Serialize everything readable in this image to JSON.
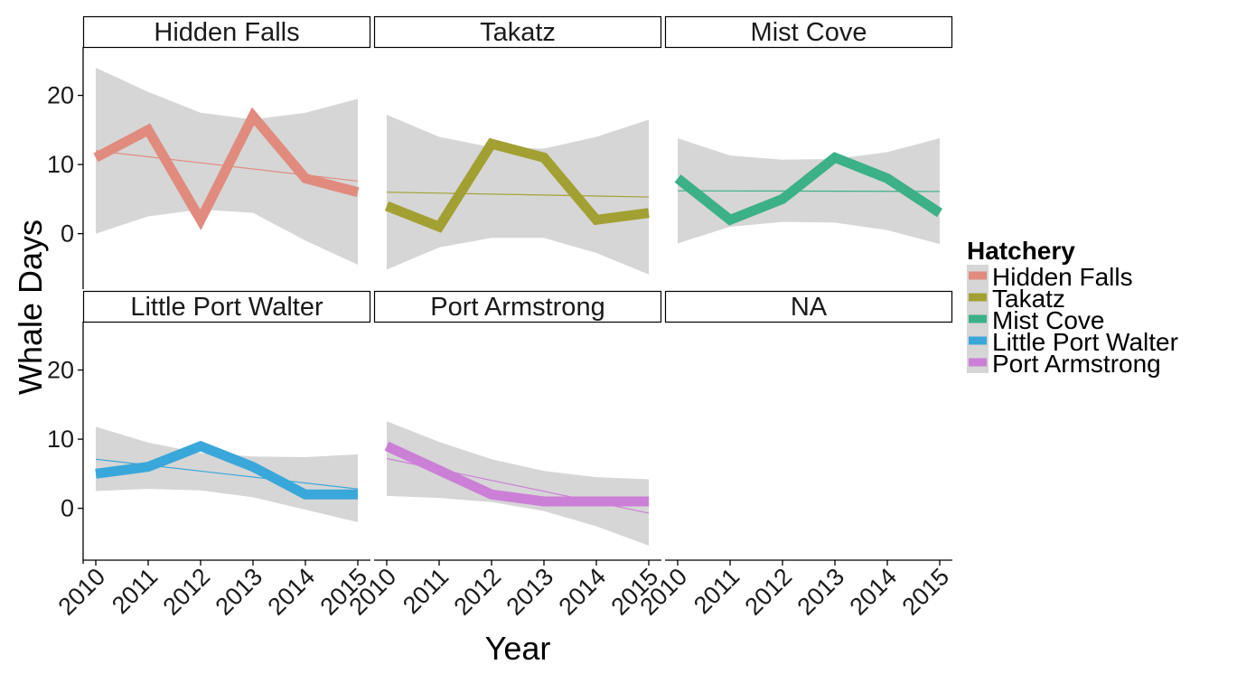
{
  "chart_data": {
    "type": "line",
    "ylabel": "Whale Days",
    "xlabel": "Year",
    "x": [
      2010,
      2011,
      2012,
      2013,
      2014,
      2015
    ],
    "x_tick_labels": [
      "2010",
      "2011",
      "2012",
      "2013",
      "2014",
      "2015"
    ],
    "y_tick_labels": [
      "0",
      "10",
      "20"
    ],
    "ylim": [
      -7.5,
      27
    ],
    "legend": {
      "title": "Hatchery",
      "placement": "right"
    },
    "panels": [
      {
        "title": "Hidden Falls",
        "color": "#E08B7E",
        "values": [
          11,
          15,
          2,
          17,
          8,
          6
        ],
        "trend": [
          12,
          7.6
        ],
        "band_upper": [
          24,
          20.5,
          17.5,
          16.5,
          17.5,
          19.5
        ],
        "band_lower": [
          0,
          2.5,
          3.5,
          3,
          -1,
          -4.5
        ]
      },
      {
        "title": "Takatz",
        "color": "#A3A033",
        "values": [
          4,
          1,
          13,
          11,
          2,
          3
        ],
        "trend": [
          6,
          5.3
        ],
        "band_upper": [
          17.2,
          14,
          12.5,
          12.3,
          14,
          16.5
        ],
        "band_lower": [
          -5.2,
          -2,
          -0.6,
          -0.6,
          -2.8,
          -5.9
        ]
      },
      {
        "title": "Mist Cove",
        "color": "#3CB087",
        "values": [
          8,
          2,
          5,
          11,
          8,
          3
        ],
        "trend": [
          6.2,
          6.1
        ],
        "band_upper": [
          13.8,
          11.3,
          10.7,
          10.8,
          11.8,
          13.8
        ],
        "band_lower": [
          -1.4,
          1,
          1.7,
          1.6,
          0.5,
          -1.5
        ]
      },
      {
        "title": "Little Port Walter",
        "color": "#3AA7DA",
        "values": [
          5,
          6,
          9,
          6,
          2,
          2
        ],
        "trend": [
          7.1,
          2.8
        ],
        "band_upper": [
          11.8,
          9.5,
          8,
          7.5,
          7.4,
          7.8
        ],
        "band_lower": [
          2.5,
          2.8,
          2.6,
          1.6,
          -0.2,
          -2
        ]
      },
      {
        "title": "Port Armstrong",
        "color": "#CC7FD6",
        "values": [
          9,
          5.5,
          2,
          1,
          1,
          1
        ],
        "trend": [
          7.2,
          -0.7
        ],
        "band_upper": [
          12.6,
          9.6,
          7.1,
          5.4,
          4.5,
          4.2
        ],
        "band_lower": [
          1.8,
          1.5,
          0.9,
          -0.4,
          -2.6,
          -5.4
        ]
      },
      {
        "title": "NA",
        "color": "#D8D8D8",
        "values": [],
        "trend": [],
        "band_upper": [],
        "band_lower": []
      }
    ]
  }
}
